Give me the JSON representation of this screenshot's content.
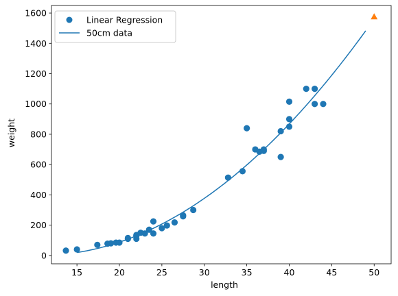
{
  "chart_data": {
    "type": "scatter",
    "xlabel": "length",
    "ylabel": "weight",
    "xlim": [
      12,
      52
    ],
    "ylim": [
      -55,
      1650
    ],
    "xticks": [
      15,
      20,
      25,
      30,
      35,
      40,
      45,
      50
    ],
    "yticks": [
      0,
      200,
      400,
      600,
      800,
      1000,
      1200,
      1400,
      1600
    ],
    "grid": false,
    "legend_position": "top-left",
    "colors": {
      "scatter": "#1f77b4",
      "curve": "#1f77b4",
      "highlight": "#ff7f0e"
    },
    "scatter": {
      "name": "Linear Regression",
      "points": [
        [
          13.7,
          32
        ],
        [
          15.0,
          40
        ],
        [
          17.4,
          70
        ],
        [
          18.6,
          78
        ],
        [
          19.0,
          80
        ],
        [
          19.6,
          85
        ],
        [
          20.0,
          85
        ],
        [
          21.0,
          110
        ],
        [
          21.0,
          115
        ],
        [
          22.0,
          110
        ],
        [
          22.0,
          130
        ],
        [
          22.0,
          135
        ],
        [
          22.5,
          150
        ],
        [
          23.0,
          145
        ],
        [
          23.5,
          170
        ],
        [
          24.0,
          225
        ],
        [
          24.0,
          145
        ],
        [
          25.0,
          180
        ],
        [
          25.6,
          198
        ],
        [
          26.5,
          218
        ],
        [
          27.5,
          258
        ],
        [
          27.5,
          265
        ],
        [
          28.7,
          300
        ],
        [
          32.8,
          514
        ],
        [
          34.5,
          556
        ],
        [
          35.0,
          840
        ],
        [
          36.0,
          700
        ],
        [
          36.5,
          685
        ],
        [
          37.0,
          700
        ],
        [
          37.0,
          690
        ],
        [
          39.0,
          650
        ],
        [
          39.0,
          820
        ],
        [
          40.0,
          850
        ],
        [
          40.0,
          900
        ],
        [
          40.0,
          1015
        ],
        [
          42.0,
          1100
        ],
        [
          43.0,
          1100
        ],
        [
          43.0,
          1000
        ],
        [
          44.0,
          1000
        ]
      ]
    },
    "curve": {
      "name": "50cm data",
      "type": "line",
      "x_range": [
        15,
        49
      ],
      "polynomial": {
        "a": 1.01,
        "b": -21.6,
        "c": 116.05
      }
    },
    "highlight_point": {
      "x": 50,
      "y": 1574,
      "marker": "triangle"
    }
  }
}
